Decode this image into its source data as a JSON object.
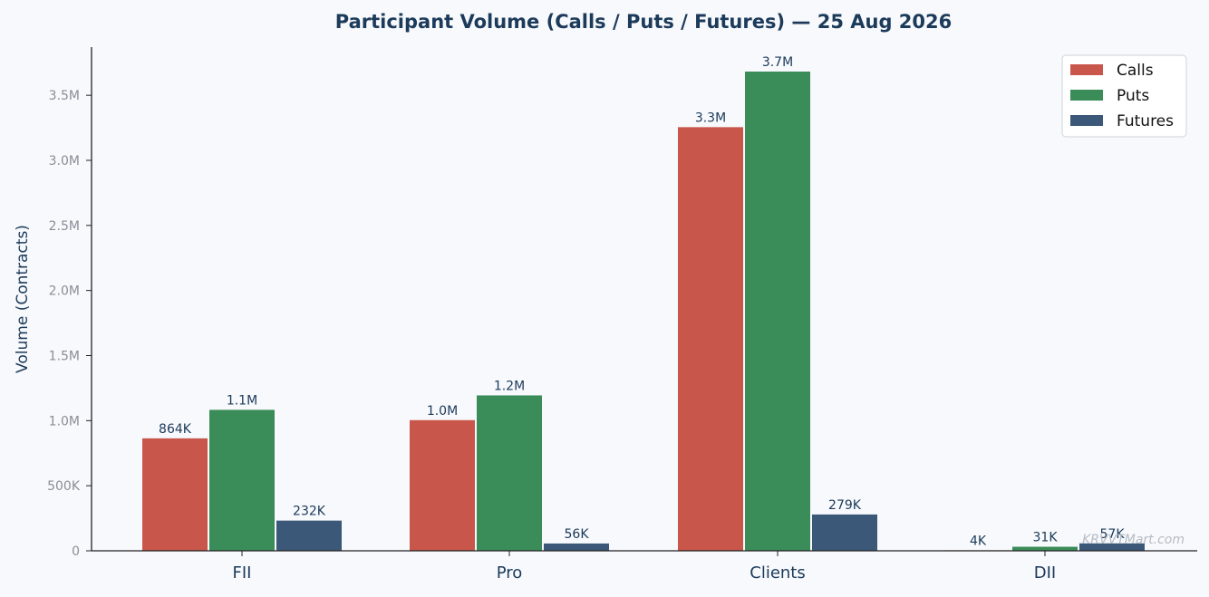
{
  "chart_data": {
    "type": "bar",
    "title": "Participant Volume (Calls / Puts / Futures) — 25 Aug 2026",
    "ylabel": "Volume (Contracts)",
    "xlabel": "",
    "categories": [
      "FII",
      "Pro",
      "Clients",
      "DII"
    ],
    "series": [
      {
        "name": "Calls",
        "color": "#c8564b",
        "values": [
          864000,
          1004000,
          3255000,
          4000
        ],
        "labels": [
          "864K",
          "1.0M",
          "3.3M",
          "4K"
        ]
      },
      {
        "name": "Puts",
        "color": "#3a8c58",
        "values": [
          1083000,
          1194000,
          3682000,
          31000
        ],
        "labels": [
          "1.1M",
          "1.2M",
          "3.7M",
          "31K"
        ]
      },
      {
        "name": "Futures",
        "color": "#3b5878",
        "values": [
          232000,
          56000,
          279000,
          57000
        ],
        "labels": [
          "232K",
          "56K",
          "279K",
          "57K"
        ]
      }
    ],
    "ylim": [
      0,
      3870000
    ],
    "yticks": [
      0,
      500000,
      1000000,
      1500000,
      2000000,
      2500000,
      3000000,
      3500000
    ],
    "ytick_labels": [
      "0",
      "500K",
      "1.0M",
      "1.5M",
      "2.0M",
      "2.5M",
      "3.0M",
      "3.5M"
    ],
    "legend_position": "top-right",
    "grid": false,
    "watermark": "KRVVTMart.com"
  }
}
